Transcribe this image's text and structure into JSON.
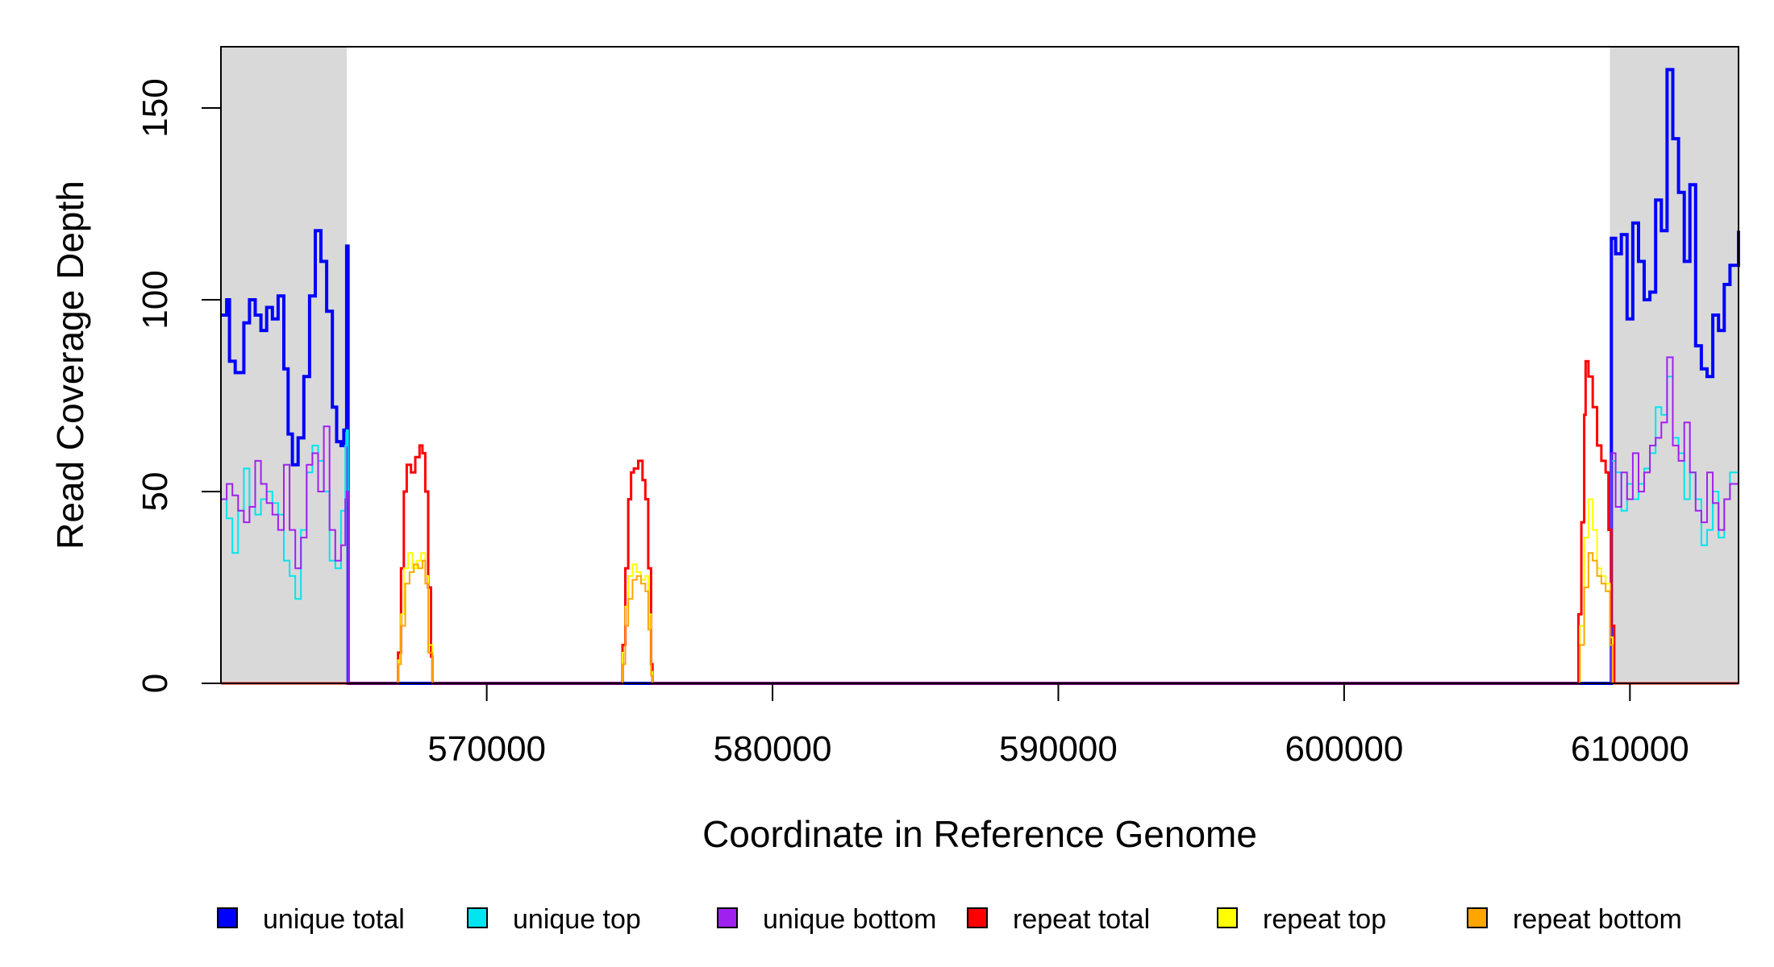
{
  "chart_data": {
    "type": "line",
    "xlabel": "Coordinate in Reference Genome",
    "ylabel": "Read Coverage Depth",
    "xlim": [
      560700,
      613800
    ],
    "ylim": [
      0,
      166
    ],
    "x_ticks": [
      570000,
      580000,
      590000,
      600000,
      610000
    ],
    "x_tick_labels": [
      "570000",
      "580000",
      "590000",
      "600000",
      "610000"
    ],
    "y_ticks": [
      0,
      50,
      100,
      150
    ],
    "y_tick_labels": [
      "0",
      "50",
      "100",
      "150"
    ],
    "grid": false,
    "legend_position": "bottom",
    "shaded_regions": [
      [
        560700,
        565100
      ],
      [
        609300,
        613800
      ]
    ],
    "shaded_color": "#d9d9d9",
    "series": [
      {
        "name": "unique total",
        "color": "#0000ff",
        "line_width": 4,
        "points": [
          [
            560700,
            96
          ],
          [
            560900,
            100
          ],
          [
            561000,
            84
          ],
          [
            561200,
            81
          ],
          [
            561500,
            94
          ],
          [
            561700,
            100
          ],
          [
            561900,
            96
          ],
          [
            562100,
            92
          ],
          [
            562300,
            98
          ],
          [
            562500,
            95
          ],
          [
            562700,
            101
          ],
          [
            562900,
            82
          ],
          [
            563050,
            65
          ],
          [
            563200,
            57
          ],
          [
            563400,
            64
          ],
          [
            563600,
            80
          ],
          [
            563800,
            101
          ],
          [
            564000,
            118
          ],
          [
            564200,
            110
          ],
          [
            564400,
            97
          ],
          [
            564600,
            72
          ],
          [
            564750,
            63
          ],
          [
            564900,
            62
          ],
          [
            565000,
            66
          ],
          [
            565100,
            114
          ],
          [
            565150,
            0
          ],
          [
            609300,
            0
          ],
          [
            609350,
            116
          ],
          [
            609500,
            112
          ],
          [
            609700,
            117
          ],
          [
            609900,
            95
          ],
          [
            610100,
            120
          ],
          [
            610300,
            110
          ],
          [
            610500,
            100
          ],
          [
            610700,
            102
          ],
          [
            610900,
            126
          ],
          [
            611100,
            118
          ],
          [
            611300,
            160
          ],
          [
            611500,
            142
          ],
          [
            611700,
            128
          ],
          [
            611900,
            110
          ],
          [
            612100,
            130
          ],
          [
            612300,
            88
          ],
          [
            612500,
            82
          ],
          [
            612700,
            80
          ],
          [
            612900,
            96
          ],
          [
            613100,
            92
          ],
          [
            613300,
            104
          ],
          [
            613500,
            109
          ],
          [
            613800,
            118
          ]
        ]
      },
      {
        "name": "unique top",
        "color": "#00e5ee",
        "line_width": 2,
        "points": [
          [
            560700,
            48
          ],
          [
            560900,
            43
          ],
          [
            561100,
            34
          ],
          [
            561300,
            45
          ],
          [
            561500,
            56
          ],
          [
            561700,
            46
          ],
          [
            561900,
            44
          ],
          [
            562100,
            48
          ],
          [
            562300,
            50
          ],
          [
            562500,
            47
          ],
          [
            562700,
            44
          ],
          [
            562900,
            32
          ],
          [
            563100,
            28
          ],
          [
            563300,
            22
          ],
          [
            563500,
            40
          ],
          [
            563700,
            55
          ],
          [
            563900,
            62
          ],
          [
            564100,
            58
          ],
          [
            564300,
            50
          ],
          [
            564500,
            32
          ],
          [
            564700,
            30
          ],
          [
            564900,
            45
          ],
          [
            565050,
            62
          ],
          [
            565100,
            66
          ],
          [
            565150,
            0
          ],
          [
            609300,
            0
          ],
          [
            609350,
            58
          ],
          [
            609500,
            55
          ],
          [
            609700,
            45
          ],
          [
            609900,
            52
          ],
          [
            610100,
            48
          ],
          [
            610300,
            52
          ],
          [
            610500,
            56
          ],
          [
            610700,
            60
          ],
          [
            610900,
            72
          ],
          [
            611100,
            70
          ],
          [
            611300,
            80
          ],
          [
            611500,
            64
          ],
          [
            611700,
            60
          ],
          [
            611900,
            48
          ],
          [
            612100,
            55
          ],
          [
            612300,
            48
          ],
          [
            612500,
            36
          ],
          [
            612700,
            40
          ],
          [
            612900,
            50
          ],
          [
            613100,
            38
          ],
          [
            613300,
            48
          ],
          [
            613500,
            55
          ],
          [
            613800,
            60
          ]
        ]
      },
      {
        "name": "unique bottom",
        "color": "#a020f0",
        "line_width": 2,
        "points": [
          [
            560700,
            48
          ],
          [
            560900,
            52
          ],
          [
            561100,
            49
          ],
          [
            561300,
            45
          ],
          [
            561500,
            42
          ],
          [
            561700,
            46
          ],
          [
            561900,
            58
          ],
          [
            562100,
            52
          ],
          [
            562300,
            47
          ],
          [
            562500,
            44
          ],
          [
            562700,
            40
          ],
          [
            562900,
            57
          ],
          [
            563100,
            40
          ],
          [
            563300,
            30
          ],
          [
            563500,
            38
          ],
          [
            563700,
            57
          ],
          [
            563900,
            60
          ],
          [
            564100,
            50
          ],
          [
            564300,
            67
          ],
          [
            564500,
            40
          ],
          [
            564700,
            32
          ],
          [
            564900,
            36
          ],
          [
            565050,
            48
          ],
          [
            565100,
            50
          ],
          [
            565150,
            0
          ],
          [
            609300,
            0
          ],
          [
            609350,
            60
          ],
          [
            609500,
            46
          ],
          [
            609700,
            55
          ],
          [
            609900,
            48
          ],
          [
            610100,
            60
          ],
          [
            610300,
            50
          ],
          [
            610500,
            55
          ],
          [
            610700,
            62
          ],
          [
            610900,
            64
          ],
          [
            611100,
            68
          ],
          [
            611300,
            85
          ],
          [
            611500,
            62
          ],
          [
            611700,
            58
          ],
          [
            611900,
            68
          ],
          [
            612100,
            55
          ],
          [
            612300,
            45
          ],
          [
            612500,
            42
          ],
          [
            612700,
            55
          ],
          [
            612900,
            47
          ],
          [
            613100,
            40
          ],
          [
            613300,
            48
          ],
          [
            613500,
            52
          ],
          [
            613800,
            54
          ]
        ]
      },
      {
        "name": "repeat total",
        "color": "#ff0000",
        "line_width": 3,
        "points": [
          [
            560700,
            0
          ],
          [
            566750,
            0
          ],
          [
            566900,
            8
          ],
          [
            567000,
            30
          ],
          [
            567100,
            50
          ],
          [
            567200,
            57
          ],
          [
            567350,
            55
          ],
          [
            567500,
            59
          ],
          [
            567650,
            62
          ],
          [
            567750,
            60
          ],
          [
            567850,
            50
          ],
          [
            567950,
            25
          ],
          [
            568050,
            7
          ],
          [
            568100,
            0
          ],
          [
            574600,
            0
          ],
          [
            574750,
            10
          ],
          [
            574850,
            30
          ],
          [
            574950,
            48
          ],
          [
            575050,
            55
          ],
          [
            575150,
            56
          ],
          [
            575300,
            58
          ],
          [
            575450,
            53
          ],
          [
            575550,
            48
          ],
          [
            575650,
            30
          ],
          [
            575750,
            5
          ],
          [
            575800,
            0
          ],
          [
            608100,
            0
          ],
          [
            608200,
            18
          ],
          [
            608300,
            42
          ],
          [
            608400,
            70
          ],
          [
            608450,
            84
          ],
          [
            608550,
            80
          ],
          [
            608700,
            72
          ],
          [
            608850,
            62
          ],
          [
            609000,
            58
          ],
          [
            609150,
            55
          ],
          [
            609250,
            40
          ],
          [
            609350,
            15
          ],
          [
            609450,
            0
          ],
          [
            613800,
            0
          ]
        ]
      },
      {
        "name": "repeat top",
        "color": "#ffff00",
        "line_width": 2,
        "points": [
          [
            560700,
            0
          ],
          [
            566750,
            0
          ],
          [
            566900,
            6
          ],
          [
            567000,
            18
          ],
          [
            567100,
            30
          ],
          [
            567250,
            34
          ],
          [
            567400,
            30
          ],
          [
            567550,
            32
          ],
          [
            567700,
            34
          ],
          [
            567850,
            28
          ],
          [
            567950,
            10
          ],
          [
            568100,
            0
          ],
          [
            574600,
            0
          ],
          [
            574750,
            8
          ],
          [
            574850,
            20
          ],
          [
            574950,
            28
          ],
          [
            575100,
            31
          ],
          [
            575250,
            29
          ],
          [
            575400,
            27
          ],
          [
            575550,
            28
          ],
          [
            575650,
            18
          ],
          [
            575750,
            3
          ],
          [
            575800,
            0
          ],
          [
            608100,
            0
          ],
          [
            608250,
            15
          ],
          [
            608400,
            38
          ],
          [
            608550,
            48
          ],
          [
            608700,
            40
          ],
          [
            608850,
            30
          ],
          [
            609000,
            28
          ],
          [
            609150,
            26
          ],
          [
            609300,
            12
          ],
          [
            609400,
            0
          ],
          [
            613800,
            0
          ]
        ]
      },
      {
        "name": "repeat bottom",
        "color": "#ffa500",
        "line_width": 2,
        "points": [
          [
            560700,
            0
          ],
          [
            566750,
            0
          ],
          [
            566900,
            5
          ],
          [
            567000,
            15
          ],
          [
            567150,
            26
          ],
          [
            567300,
            29
          ],
          [
            567450,
            31
          ],
          [
            567600,
            30
          ],
          [
            567750,
            32
          ],
          [
            567850,
            26
          ],
          [
            567950,
            8
          ],
          [
            568100,
            0
          ],
          [
            574600,
            0
          ],
          [
            574750,
            5
          ],
          [
            574850,
            15
          ],
          [
            574950,
            22
          ],
          [
            575100,
            27
          ],
          [
            575250,
            28
          ],
          [
            575400,
            26
          ],
          [
            575550,
            24
          ],
          [
            575650,
            14
          ],
          [
            575750,
            2
          ],
          [
            575800,
            0
          ],
          [
            608100,
            0
          ],
          [
            608250,
            10
          ],
          [
            608400,
            25
          ],
          [
            608550,
            34
          ],
          [
            608700,
            32
          ],
          [
            608850,
            28
          ],
          [
            609000,
            26
          ],
          [
            609150,
            24
          ],
          [
            609300,
            10
          ],
          [
            609400,
            0
          ],
          [
            613800,
            0
          ]
        ]
      }
    ]
  }
}
